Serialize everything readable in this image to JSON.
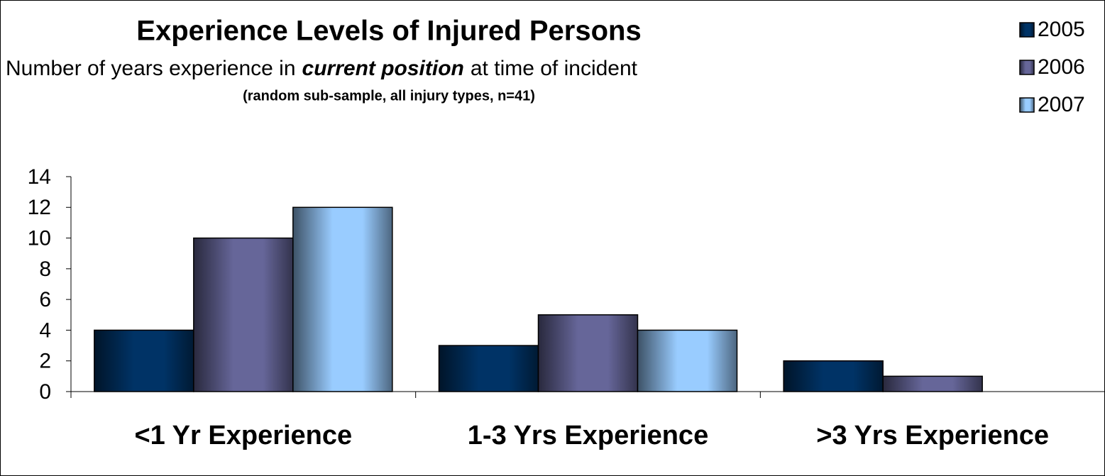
{
  "chart_data": {
    "type": "bar",
    "title": "Experience Levels of Injured Persons",
    "subtitle": [
      "Number of years experience in",
      "current position",
      "at time of incident"
    ],
    "note": "(random sub-sample, all injury types, n=41)",
    "categories": [
      "<1 Yr Experience",
      "1-3 Yrs Experience",
      ">3 Yrs Experience"
    ],
    "series": [
      {
        "name": "2005",
        "color": "#003366",
        "values": [
          4,
          3,
          2
        ]
      },
      {
        "name": "2006",
        "color": "#666699",
        "values": [
          10,
          5,
          1
        ]
      },
      {
        "name": "2007",
        "color": "#99ccff",
        "values": [
          12,
          4,
          0
        ]
      }
    ],
    "ylim": [
      0,
      14
    ],
    "yticks": [
      0,
      2,
      4,
      6,
      8,
      10,
      12,
      14
    ],
    "grid": false,
    "legend": "top-right"
  }
}
